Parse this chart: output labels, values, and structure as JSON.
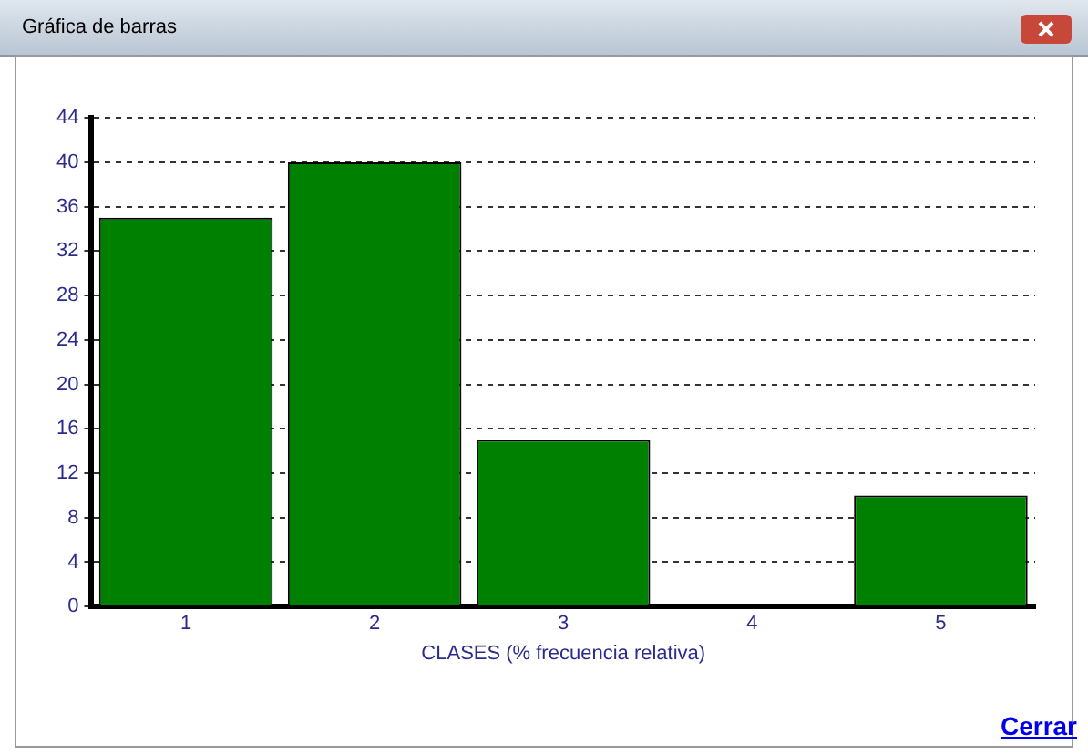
{
  "chart_data": {
    "type": "bar",
    "title": "Gráfica de barras",
    "xlabel": "CLASES (% frecuencia relativa)",
    "categories": [
      "1",
      "2",
      "3",
      "4",
      "5"
    ],
    "values": [
      35,
      40,
      15,
      0,
      10
    ],
    "color": "#008000",
    "ylim": [
      0,
      44
    ],
    "yticks": [
      0,
      4,
      8,
      12,
      16,
      20,
      24,
      28,
      32,
      36,
      40,
      44
    ],
    "grid": "y",
    "legend": false,
    "annotations": [
      "Cerrar"
    ]
  }
}
